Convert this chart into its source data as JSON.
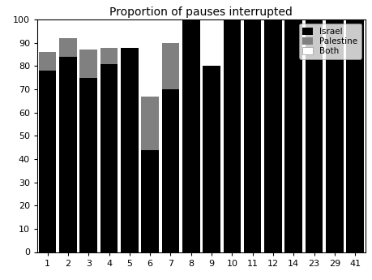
{
  "categories": [
    "1",
    "2",
    "3",
    "4",
    "5",
    "6",
    "7",
    "8",
    "9",
    "10",
    "11",
    "12",
    "14",
    "23",
    "29",
    "41"
  ],
  "israel": [
    78,
    84,
    75,
    81,
    88,
    44,
    70,
    100,
    80,
    100,
    100,
    100,
    100,
    100,
    100,
    100
  ],
  "palestine": [
    8,
    8,
    12,
    7,
    0,
    23,
    20,
    0,
    0,
    0,
    0,
    0,
    0,
    0,
    0,
    0
  ],
  "both": [
    14,
    0,
    0,
    0,
    0,
    0,
    10,
    0,
    0,
    0,
    0,
    0,
    0,
    0,
    0,
    0
  ],
  "israel_color": "#000000",
  "palestine_color": "#808080",
  "both_color": "#ffffff",
  "title": "Proportion of pauses interrupted",
  "title_fontsize": 10,
  "ylim": [
    0,
    100
  ],
  "yticks": [
    0,
    10,
    20,
    30,
    40,
    50,
    60,
    70,
    80,
    90,
    100
  ],
  "legend_labels": [
    "Israel",
    "Palestine",
    "Both"
  ],
  "bar_width": 0.85,
  "tick_fontsize": 8
}
